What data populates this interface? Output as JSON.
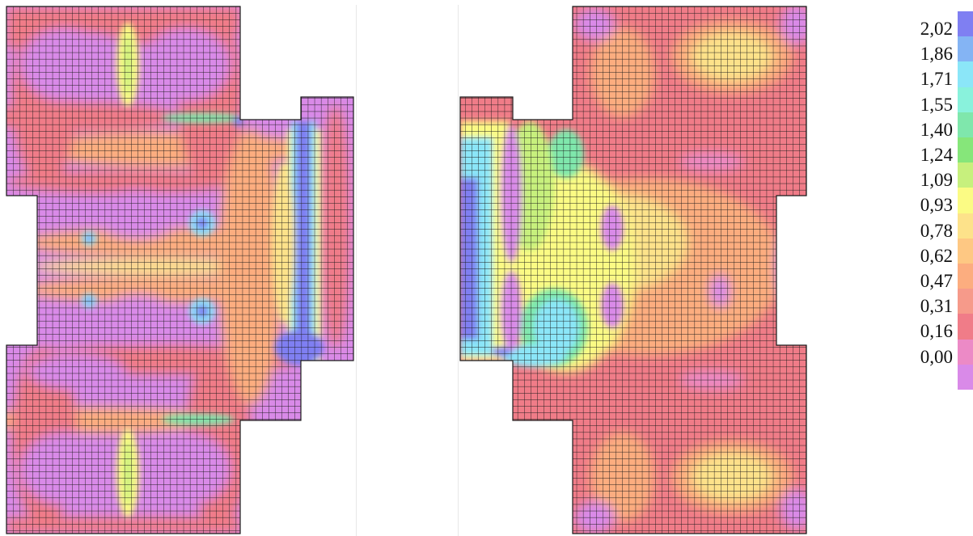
{
  "legend": {
    "labels": [
      "2,02",
      "1,86",
      "1,71",
      "1,55",
      "1,40",
      "1,24",
      "1,09",
      "0,93",
      "0,78",
      "0,62",
      "0,47",
      "0,31",
      "0,16",
      "0,00"
    ],
    "swatch_colors": [
      "#7f7ff2",
      "#84b4f4",
      "#8be6f8",
      "#89f2dc",
      "#7fe7ac",
      "#86e67a",
      "#c7f07d",
      "#fbfb84",
      "#fde28a",
      "#fec883",
      "#fcad7f",
      "#f69a8a",
      "#f07c88",
      "#ec8ac6",
      "#d98ae8"
    ]
  },
  "palette": {
    "base": "#d98ae8",
    "low": "#ec8ac6",
    "mid_low": "#f07c88",
    "orange": "#fcad7f",
    "yellow": "#fbfb84",
    "green": "#7fe7ac",
    "cyan": "#8be6f8",
    "blue": "#7f7ff2",
    "grid_line": "#1a1a1a"
  }
}
